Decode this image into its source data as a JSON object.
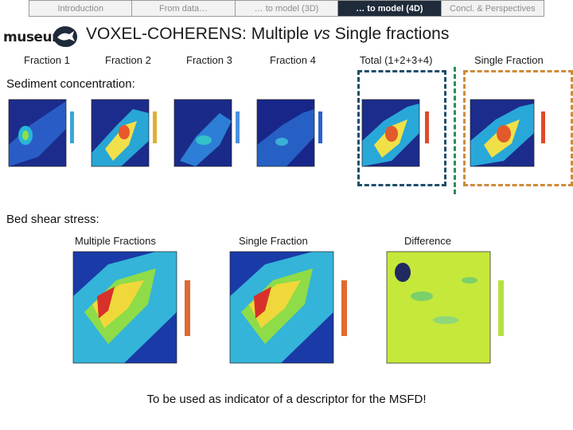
{
  "nav": {
    "tabs": [
      {
        "label": "Introduction",
        "active": false
      },
      {
        "label": "From data…",
        "active": false
      },
      {
        "label": "… to model (3D)",
        "active": false
      },
      {
        "label": "… to model (4D)",
        "active": true
      },
      {
        "label": "Concl. & Perspectives",
        "active": false
      }
    ]
  },
  "logo": {
    "text": "museum",
    "icon": "fish-icon"
  },
  "title": {
    "prefix": "VOXEL-COHERENS: Multiple ",
    "emph": "vs",
    "suffix": " Single fractions"
  },
  "fractions": {
    "f1": "Fraction 1",
    "f2": "Fraction 2",
    "f3": "Fraction 3",
    "f4": "Fraction 4",
    "total": "Total (1+2+3+4)",
    "single": "Single Fraction"
  },
  "sediment": {
    "label": "Sediment concentration:"
  },
  "shear": {
    "label": "Bed shear stress:",
    "multiple": "Multiple Fractions",
    "single": "Single Fraction",
    "difference": "Difference"
  },
  "footer": {
    "text": "To be used as indicator  of a descriptor for the MSFD!"
  },
  "colors": {
    "nav_active": "#1f2b3a",
    "box_dash": "#1f4e6a",
    "orange_dash": "#d08a3a",
    "green_dash": "#2e8b57"
  }
}
